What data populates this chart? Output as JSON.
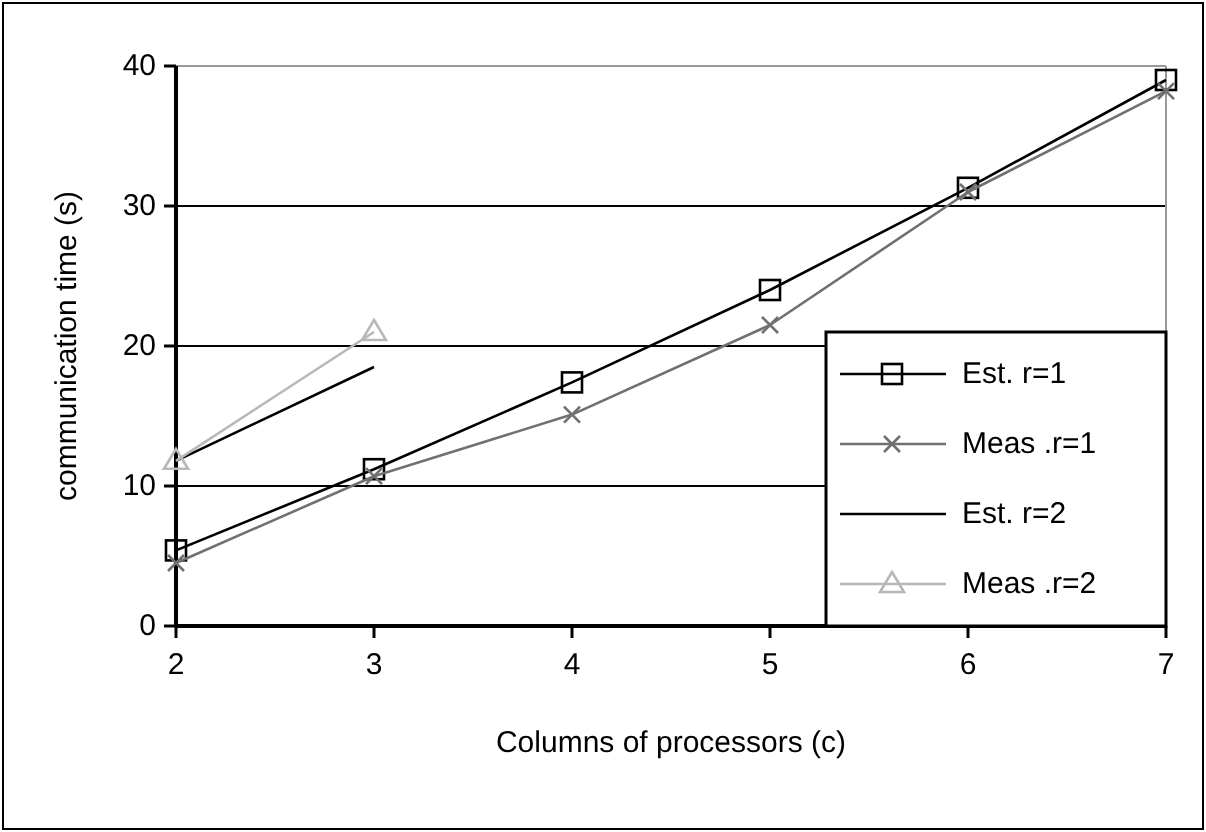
{
  "chart_data": {
    "type": "line",
    "xlabel": "Columns of processors (c)",
    "ylabel": "communication time (s)",
    "x": [
      2,
      3,
      4,
      5,
      6,
      7
    ],
    "xlim": [
      2,
      7
    ],
    "xticks": [
      2,
      3,
      4,
      5,
      6,
      7
    ],
    "ylim": [
      0,
      40
    ],
    "yticks": [
      0,
      10,
      20,
      30,
      40
    ],
    "grid": "y",
    "legend": "right",
    "series": [
      {
        "name": "Est. r=1",
        "color": "#000000",
        "marker": "square",
        "values": [
          5.4,
          11.2,
          17.4,
          24,
          31.3,
          39
        ]
      },
      {
        "name": "Meas .r=1",
        "color": "#707070",
        "marker": "cross",
        "values": [
          4.5,
          10.7,
          15.1,
          21.5,
          31,
          38.2
        ]
      },
      {
        "name": "Est. r=2",
        "color": "#000000",
        "marker": "none",
        "values": [
          11.8,
          18.5,
          null,
          null,
          null,
          null
        ]
      },
      {
        "name": "Meas .r=2",
        "color": "#b8b8b8",
        "marker": "triangle",
        "values": [
          11.8,
          21,
          null,
          null,
          null,
          null
        ]
      }
    ]
  }
}
